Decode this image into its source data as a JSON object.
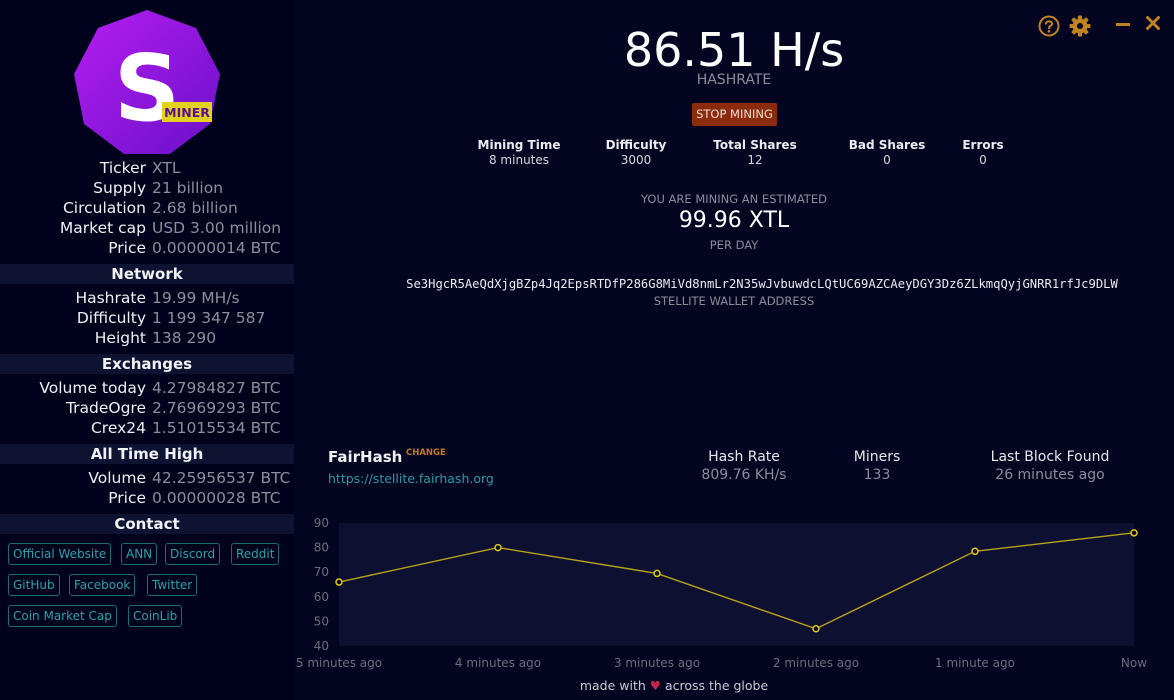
{
  "logo": {
    "letter": "S",
    "badge": "MINER"
  },
  "coin": [
    {
      "key": "Ticker",
      "value": "XTL"
    },
    {
      "key": "Supply",
      "value": "21 billion"
    },
    {
      "key": "Circulation",
      "value": "2.68 billion"
    },
    {
      "key": "Market cap",
      "value": "USD 3.00 million"
    },
    {
      "key": "Price",
      "value": "0.00000014 BTC"
    }
  ],
  "network": {
    "title": "Network",
    "rows": [
      {
        "key": "Hashrate",
        "value": "19.99 MH/s"
      },
      {
        "key": "Difficulty",
        "value": "1 199 347 587"
      },
      {
        "key": "Height",
        "value": "138 290"
      }
    ]
  },
  "exchanges": {
    "title": "Exchanges",
    "rows": [
      {
        "key": "Volume today",
        "value": "4.27984827 BTC"
      },
      {
        "key": "TradeOgre",
        "value": "2.76969293 BTC"
      },
      {
        "key": "Crex24",
        "value": "1.51015534 BTC"
      }
    ]
  },
  "ath": {
    "title": "All Time High",
    "rows": [
      {
        "key": "Volume",
        "value": "42.25956537 BTC"
      },
      {
        "key": "Price",
        "value": "0.00000028 BTC"
      }
    ]
  },
  "contact": {
    "title": "Contact",
    "links": [
      "Official Website",
      "ANN",
      "Discord",
      "Reddit",
      "GitHub",
      "Facebook",
      "Twitter",
      "Coin Market Cap",
      "CoinLib"
    ]
  },
  "top_icons": [
    "help-icon",
    "gear-icon",
    "minimize-icon",
    "close-icon"
  ],
  "miner": {
    "hashrate": "86.51 H/s",
    "hashrate_label": "HASHRATE",
    "stop_button": "STOP MINING",
    "stats": [
      {
        "label": "Mining Time",
        "value": "8 minutes"
      },
      {
        "label": "Difficulty",
        "value": "3000"
      },
      {
        "label": "Total Shares",
        "value": "12"
      },
      {
        "label": "Bad Shares",
        "value": "0"
      },
      {
        "label": "Errors",
        "value": "0"
      }
    ],
    "estimate_label": "YOU ARE MINING AN ESTIMATED",
    "estimate_value": "99.96 XTL",
    "estimate_unit": "PER DAY",
    "wallet": "Se3HgcR5AeQdXjgBZp4Jq2EpsRTDfP286G8MiVd8nmLr2N35wJvbuwdcLQtUC69AZCAeyDGY3Dz6ZLkmqQyjGNRR1rfJc9DLW",
    "wallet_label": "STELLITE WALLET ADDRESS"
  },
  "pool": {
    "name": "FairHash",
    "change_label": "CHANGE",
    "url": "https://stellite.fairhash.org",
    "stats": [
      {
        "label": "Hash Rate",
        "value": "809.76 KH/s"
      },
      {
        "label": "Miners",
        "value": "133"
      },
      {
        "label": "Last Block Found",
        "value": "26 minutes ago"
      }
    ]
  },
  "chart_data": {
    "type": "line",
    "categories": [
      "5 minutes ago",
      "4 minutes ago",
      "3 minutes ago",
      "2 minutes ago",
      "1 minute ago",
      "Now"
    ],
    "y_ticks": [
      40,
      50,
      60,
      70,
      80,
      90
    ],
    "ylim": [
      40,
      90
    ],
    "values": [
      66,
      80,
      69.5,
      47,
      78.5,
      86
    ],
    "line_color": "#b8a21c",
    "fill_color": "#0d1030",
    "grid": false
  },
  "footer": {
    "before": "made with",
    "heart": "♥",
    "after": "across the globe"
  }
}
